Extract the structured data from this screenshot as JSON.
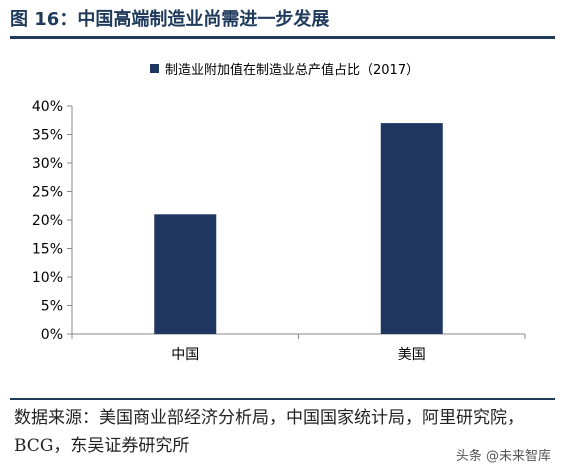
{
  "figure": {
    "title": "图 16：中国高端制造业尚需进一步发展",
    "source": "数据来源：美国商业部经济分析局，中国国家统计局，阿里研究院，BCG，东吴证券研究所",
    "watermark": "头条 @未来智库"
  },
  "chart_data": {
    "type": "bar",
    "categories": [
      "中国",
      "美国"
    ],
    "series": [
      {
        "name": "制造业附加值在制造业总产值占比（2017）",
        "values": [
          0.21,
          0.37
        ],
        "color": "#1f3660"
      }
    ],
    "ylim": [
      0,
      0.4
    ],
    "yticks": [
      "0%",
      "5%",
      "10%",
      "15%",
      "20%",
      "25%",
      "30%",
      "35%",
      "40%"
    ],
    "xlabel": "",
    "ylabel": "",
    "grid": false,
    "legend": "top"
  }
}
